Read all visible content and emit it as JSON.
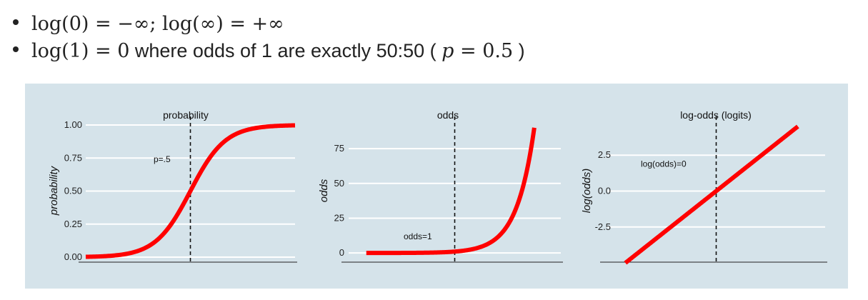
{
  "bullets": [
    {
      "parts": [
        {
          "cls": "math",
          "t": "log(0) = −∞; log(∞) = +∞"
        }
      ]
    },
    {
      "parts": [
        {
          "cls": "math",
          "t": "log(1) = 0"
        },
        {
          "cls": "txt",
          "t": " where odds of 1 are exactly 50:50 ( "
        },
        {
          "cls": "math mi",
          "t": "p"
        },
        {
          "cls": "math",
          "t": " = 0.5"
        },
        {
          "cls": "txt",
          "t": " )"
        }
      ]
    }
  ],
  "chart_data": [
    {
      "type": "line",
      "title": "probability",
      "ylabel": "probability",
      "xlabel": "",
      "ylim": [
        0,
        1
      ],
      "yticks": [
        {
          "v": 0,
          "label": "0.00"
        },
        {
          "v": 0.25,
          "label": "0.25"
        },
        {
          "v": 0.5,
          "label": "0.50"
        },
        {
          "v": 0.75,
          "label": "0.75"
        },
        {
          "v": 1,
          "label": "1.00"
        }
      ],
      "xlim": [
        -6,
        6
      ],
      "function": "probability",
      "series": [
        {
          "color": "#ff0000",
          "x_range": [
            -6,
            6
          ]
        }
      ],
      "reference_line": {
        "x": 0,
        "style": "dashed"
      },
      "annotation": {
        "text": "p=.5",
        "x": -1.5,
        "y": 0.74
      }
    },
    {
      "type": "line",
      "title": "odds",
      "ylabel": "odds",
      "xlabel": "",
      "ylim": [
        -3,
        92
      ],
      "yticks": [
        {
          "v": 0,
          "label": "0"
        },
        {
          "v": 25,
          "label": "25"
        },
        {
          "v": 50,
          "label": "50"
        },
        {
          "v": 75,
          "label": "75"
        }
      ],
      "xlim": [
        -6,
        6
      ],
      "function": "odds",
      "series": [
        {
          "color": "#ff0000",
          "x_range": [
            -5,
            4.5
          ]
        }
      ],
      "reference_line": {
        "x": 0,
        "style": "dashed"
      },
      "annotation": {
        "text": "odds=1",
        "x": -1.5,
        "y": 12
      }
    },
    {
      "type": "line",
      "title": "log-odds (logits)",
      "ylabel": "log(odds)",
      "xlabel": "",
      "ylim": [
        -4.6,
        4.6
      ],
      "yticks": [
        {
          "v": -2.5,
          "label": "-2.5"
        },
        {
          "v": 0,
          "label": "0.0"
        },
        {
          "v": 2.5,
          "label": "2.5"
        }
      ],
      "xlim": [
        -6,
        6
      ],
      "function": "logodds",
      "series": [
        {
          "color": "#ff0000",
          "x_range": [
            -5,
            4.5
          ]
        }
      ],
      "reference_line": {
        "x": 0,
        "style": "dashed"
      },
      "annotation": {
        "text": "log(odds)=0",
        "x": -3.5,
        "y": 1.9
      }
    }
  ]
}
